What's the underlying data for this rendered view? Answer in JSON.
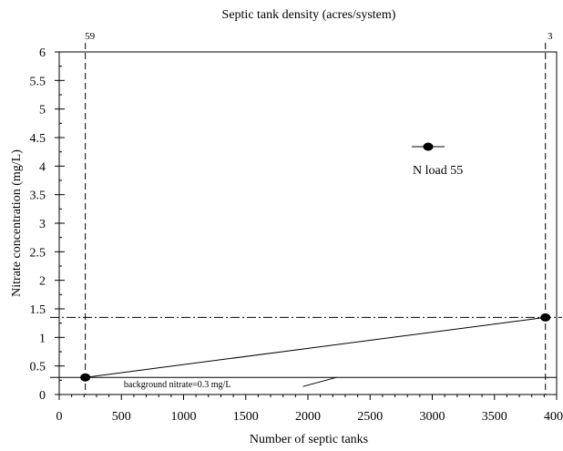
{
  "chart_data": {
    "type": "line",
    "title_top_axis": "Septic tank density (acres/system)",
    "xlabel": "Number of septic tanks",
    "ylabel": "Nitrate concentration (mg/L)",
    "xlim": [
      0,
      4000
    ],
    "ylim": [
      0,
      6
    ],
    "x_ticks": [
      0,
      500,
      1000,
      1500,
      2000,
      2500,
      3000,
      3500,
      4000
    ],
    "x_tick_labels": [
      "0",
      "500",
      "1000",
      "1500",
      "2000",
      "2500",
      "3000",
      "3500",
      "4000"
    ],
    "y_ticks": [
      0,
      0.5,
      1,
      1.5,
      2,
      2.5,
      3,
      3.5,
      4,
      4.5,
      5,
      5.5,
      6
    ],
    "y_tick_labels": [
      "0",
      "0.5",
      "1",
      "1.5",
      "2",
      "2.5",
      "3",
      "3.5",
      "4",
      "4.5",
      "5",
      "5.5",
      "6"
    ],
    "top_axis_markers": [
      {
        "x": 210,
        "label": "59"
      },
      {
        "x": 3910,
        "label": "3"
      }
    ],
    "series": [
      {
        "name": "N load 55",
        "x": [
          210,
          3910
        ],
        "y": [
          0.3,
          1.35
        ]
      }
    ],
    "background": {
      "y": 0.3,
      "label": "background nitrate=0.3 mg/L"
    },
    "reference_line": {
      "y": 1.35
    },
    "legend_position": "top-right",
    "grid": false
  }
}
